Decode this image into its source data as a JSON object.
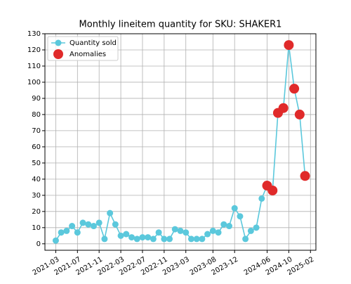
{
  "chart_data": {
    "type": "line",
    "title": "Monthly lineitem quantity for SKU: SHAKER1",
    "series": [
      {
        "name": "Quantity sold",
        "color": "#5bc8dc",
        "kind": "line",
        "x": [
          "2021-03",
          "2021-04",
          "2021-05",
          "2021-06",
          "2021-07",
          "2021-08",
          "2021-09",
          "2021-10",
          "2021-11",
          "2021-12",
          "2022-01",
          "2022-02",
          "2022-03",
          "2022-04",
          "2022-05",
          "2022-06",
          "2022-07",
          "2022-08",
          "2022-09",
          "2022-10",
          "2022-11",
          "2022-12",
          "2023-01",
          "2023-02",
          "2023-03",
          "2023-04",
          "2023-05",
          "2023-06",
          "2023-07",
          "2023-08",
          "2023-09",
          "2023-10",
          "2023-11",
          "2023-12",
          "2024-01",
          "2024-02",
          "2024-03",
          "2024-04",
          "2024-05",
          "2024-06",
          "2024-07",
          "2024-08",
          "2024-09",
          "2024-10",
          "2024-11",
          "2024-12",
          "2025-01"
        ],
        "values": [
          2,
          7,
          8,
          11,
          7,
          13,
          12,
          11,
          13,
          3,
          19,
          12,
          5,
          6,
          4,
          3,
          4,
          4,
          3,
          7,
          3,
          3,
          9,
          8,
          7,
          3,
          3,
          3,
          6,
          8,
          7,
          12,
          11,
          22,
          17,
          3,
          8,
          10,
          28,
          36,
          33,
          81,
          84,
          123,
          96,
          80,
          42
        ]
      },
      {
        "name": "Anomalies",
        "color": "#e02a2a",
        "kind": "scatter",
        "x": [
          "2024-06",
          "2024-07",
          "2024-08",
          "2024-09",
          "2024-10",
          "2024-11",
          "2024-12",
          "2025-01"
        ],
        "values": [
          36,
          33,
          81,
          84,
          123,
          96,
          80,
          42
        ]
      }
    ],
    "xlim": [
      "2021-01",
      "2025-03"
    ],
    "xticks": [
      "2021-03",
      "2021-07",
      "2021-11",
      "2022-03",
      "2022-07",
      "2022-11",
      "2023-03",
      "2023-08",
      "2023-12",
      "2024-06",
      "2024-10",
      "2025-02"
    ],
    "ylim": [
      -4,
      130
    ],
    "yticks": [
      0,
      10,
      20,
      30,
      40,
      50,
      60,
      70,
      80,
      90,
      100,
      110,
      120,
      130
    ],
    "grid": true,
    "legend": "upper left"
  }
}
